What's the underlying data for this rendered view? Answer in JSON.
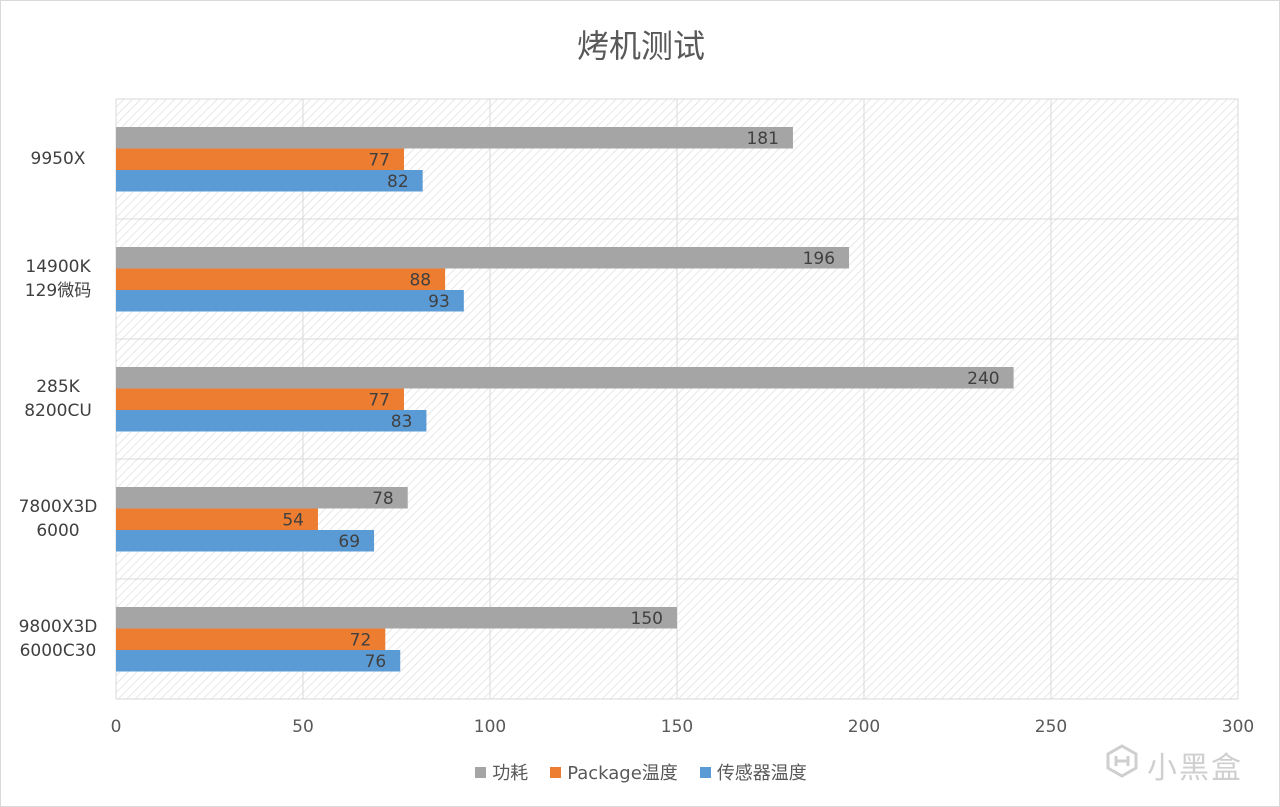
{
  "chart_data": {
    "type": "bar",
    "orientation": "horizontal",
    "title": "烤机测试",
    "categories": [
      "9950X",
      "14900K\n129微码",
      "285K\n8200CU",
      "7800X3D\n6000",
      "9800X3D\n6000C30"
    ],
    "series": [
      {
        "name": "功耗",
        "color": "#a5a5a5",
        "values": [
          181,
          196,
          240,
          78,
          150
        ]
      },
      {
        "name": "Package温度",
        "color": "#ed7d31",
        "values": [
          77,
          88,
          77,
          54,
          72
        ]
      },
      {
        "name": "传感器温度",
        "color": "#5b9bd5",
        "values": [
          82,
          93,
          83,
          69,
          76
        ]
      }
    ],
    "xlim": [
      0,
      300
    ],
    "xticks": [
      0,
      50,
      100,
      150,
      200,
      250,
      300
    ],
    "grid": true,
    "legend_position": "bottom",
    "data_labels": true
  },
  "watermark": {
    "text": "小黑盒",
    "icon": "heybox-logo-icon"
  }
}
